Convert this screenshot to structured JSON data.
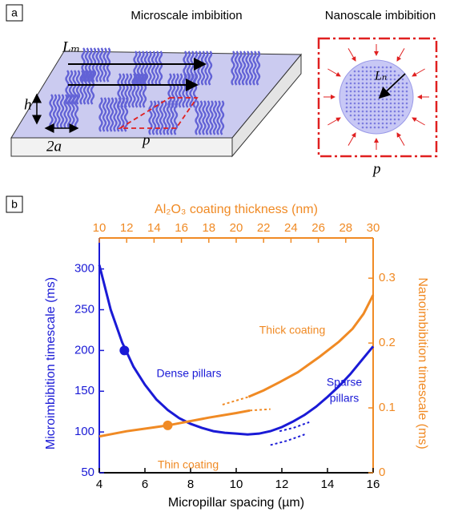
{
  "panel_a": {
    "label": "a",
    "microscale_title": "Microscale imbibition",
    "nanoscale_title": "Nanoscale imbibition",
    "L_m": "Lₘ",
    "h": "h",
    "two_a": "2a",
    "p_micro": "p",
    "L_n": "Lₙ",
    "p_nano": "p"
  },
  "chart_data": {
    "type": "line",
    "panel_label": "b",
    "xlabel": "Micropillar spacing (µm)",
    "x2label": "Al₂O₃ coating thickness (nm)",
    "ylabel": "Microimbibition timescale (ms)",
    "y2label": "Nanoimbibition timescale (ms)",
    "xlim": [
      4,
      16
    ],
    "xticks": [
      4,
      6,
      8,
      10,
      12,
      14,
      16
    ],
    "x2lim": [
      10,
      30
    ],
    "x2ticks": [
      10,
      12,
      14,
      16,
      18,
      20,
      22,
      24,
      26,
      28,
      30
    ],
    "ylim": [
      50,
      338
    ],
    "yticks": [
      50,
      100,
      150,
      200,
      250,
      300
    ],
    "y2lim": [
      0,
      0.362
    ],
    "y2ticks": [
      0,
      0.1,
      0.2,
      0.3
    ],
    "xcolor": "#000000",
    "x2color": "#f08a24",
    "ycolor": "#1a1ad6",
    "y2color": "#f08a24",
    "series": [
      {
        "color": "#1a1ad6",
        "style": "solid",
        "x": [
          4,
          4.5,
          5,
          5.5,
          6,
          6.5,
          7,
          7.5,
          8,
          8.5,
          9,
          9.5,
          10,
          10.5,
          11,
          11.5,
          12,
          12.5,
          13,
          13.5,
          14,
          14.5,
          15,
          15.5,
          16
        ],
        "values": [
          305,
          250,
          210,
          180,
          158,
          140,
          127,
          117,
          110,
          105,
          101,
          99,
          98,
          97,
          98,
          101,
          106,
          113,
          121,
          131,
          143,
          156,
          171,
          188,
          205
        ]
      },
      {
        "color": "#1a1ad6",
        "style": "dotted",
        "x": [
          11.9,
          12.5,
          13.2
        ],
        "values": [
          101,
          105,
          112
        ]
      },
      {
        "color": "#1a1ad6",
        "style": "dotted",
        "x": [
          11.5,
          12.2,
          13.0
        ],
        "values": [
          84,
          89,
          97
        ]
      },
      {
        "color": "#f08a24",
        "style": "solid",
        "axis": "y2",
        "x_axis": "x2",
        "x": [
          10,
          12,
          14,
          15,
          16,
          18,
          20,
          21
        ],
        "values": [
          0.056,
          0.064,
          0.07,
          0.073,
          0.077,
          0.085,
          0.092,
          0.096
        ]
      },
      {
        "color": "#f08a24",
        "style": "dotted",
        "axis": "y2",
        "x_axis": "x2",
        "x": [
          21,
          22.5
        ],
        "values": [
          0.096,
          0.098
        ]
      },
      {
        "color": "#f08a24",
        "style": "dotted",
        "axis": "y2",
        "x_axis": "x2",
        "x": [
          19,
          20.9
        ],
        "values": [
          0.105,
          0.117
        ]
      },
      {
        "color": "#f08a24",
        "style": "solid",
        "axis": "y2",
        "x_axis": "x2",
        "x": [
          20.9,
          22,
          23.2,
          24.5,
          26.1,
          27.5,
          28.5,
          29.3,
          30
        ],
        "values": [
          0.117,
          0.127,
          0.14,
          0.155,
          0.179,
          0.202,
          0.222,
          0.245,
          0.274
        ]
      }
    ],
    "markers": [
      {
        "x": 5.1,
        "y": 200,
        "color": "#1a1ad6"
      },
      {
        "x": 15,
        "y": 0.073,
        "color": "#f08a24",
        "axis": "y2",
        "x_axis": "x2"
      }
    ],
    "annotations": [
      {
        "lines": [
          "Dense pillars"
        ],
        "color": "#1a1ad6"
      },
      {
        "lines": [
          "Sparse",
          "pillars"
        ],
        "color": "#1a1ad6"
      },
      {
        "lines": [
          "Thick coating"
        ],
        "color": "#f08a24"
      },
      {
        "lines": [
          "Thin coating"
        ],
        "color": "#f08a24"
      }
    ]
  }
}
